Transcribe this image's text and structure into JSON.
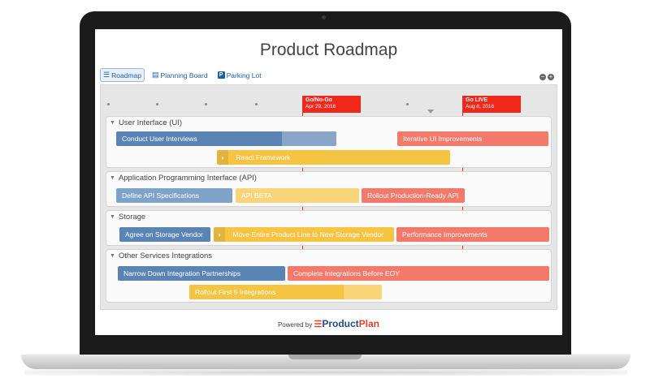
{
  "title": "Product Roadmap",
  "tabs": [
    {
      "label": "Roadmap",
      "icon": "roadmap-icon",
      "active": true
    },
    {
      "label": "Planning Board",
      "icon": "planning-board-icon",
      "active": false
    },
    {
      "label": "Parking Lot",
      "icon": "parking-lot-icon",
      "active": false
    }
  ],
  "zoom": {
    "minus": "−",
    "plus": "+"
  },
  "milestones": [
    {
      "name": "Go/No-Go",
      "date": "Apr 29, 2016"
    },
    {
      "name": "Go LIVE",
      "date": "Aug 6, 2016"
    }
  ],
  "lanes": [
    {
      "name": "User Interface (UI)",
      "bars": [
        {
          "label": "Conduct User Interviews",
          "color": "#5a84b4"
        },
        {
          "label": "Iterative UI Improvements",
          "color": "#f3796a"
        },
        {
          "label": "React Framework",
          "color": "#f6c443"
        }
      ]
    },
    {
      "name": "Application Programming Interface (API)",
      "bars": [
        {
          "label": "Define API Specifications",
          "color": "#7fa2c8"
        },
        {
          "label": "API BETA",
          "color": "#f9d47b"
        },
        {
          "label": "Rollout Production-Ready API",
          "color": "#f3796a"
        }
      ]
    },
    {
      "name": "Storage",
      "bars": [
        {
          "label": "Agree on Storage Vendor",
          "color": "#5a84b4"
        },
        {
          "label": "Move Entire Product Line to New Storage Vendor",
          "color": "#f6c443"
        },
        {
          "label": "Performance Improvements",
          "color": "#f3796a"
        }
      ]
    },
    {
      "name": "Other Services Integrations",
      "bars": [
        {
          "label": "Narrow Down Integration Partnerships",
          "color": "#5a84b4"
        },
        {
          "label": "Complete Integrations Before EOY",
          "color": "#f3796a"
        },
        {
          "label": "Rollout First 5 Integrations",
          "color": "#f6c443"
        }
      ]
    }
  ],
  "footer": {
    "powered_by": "Powered by",
    "brand_a": "Product",
    "brand_b": "Plan"
  }
}
